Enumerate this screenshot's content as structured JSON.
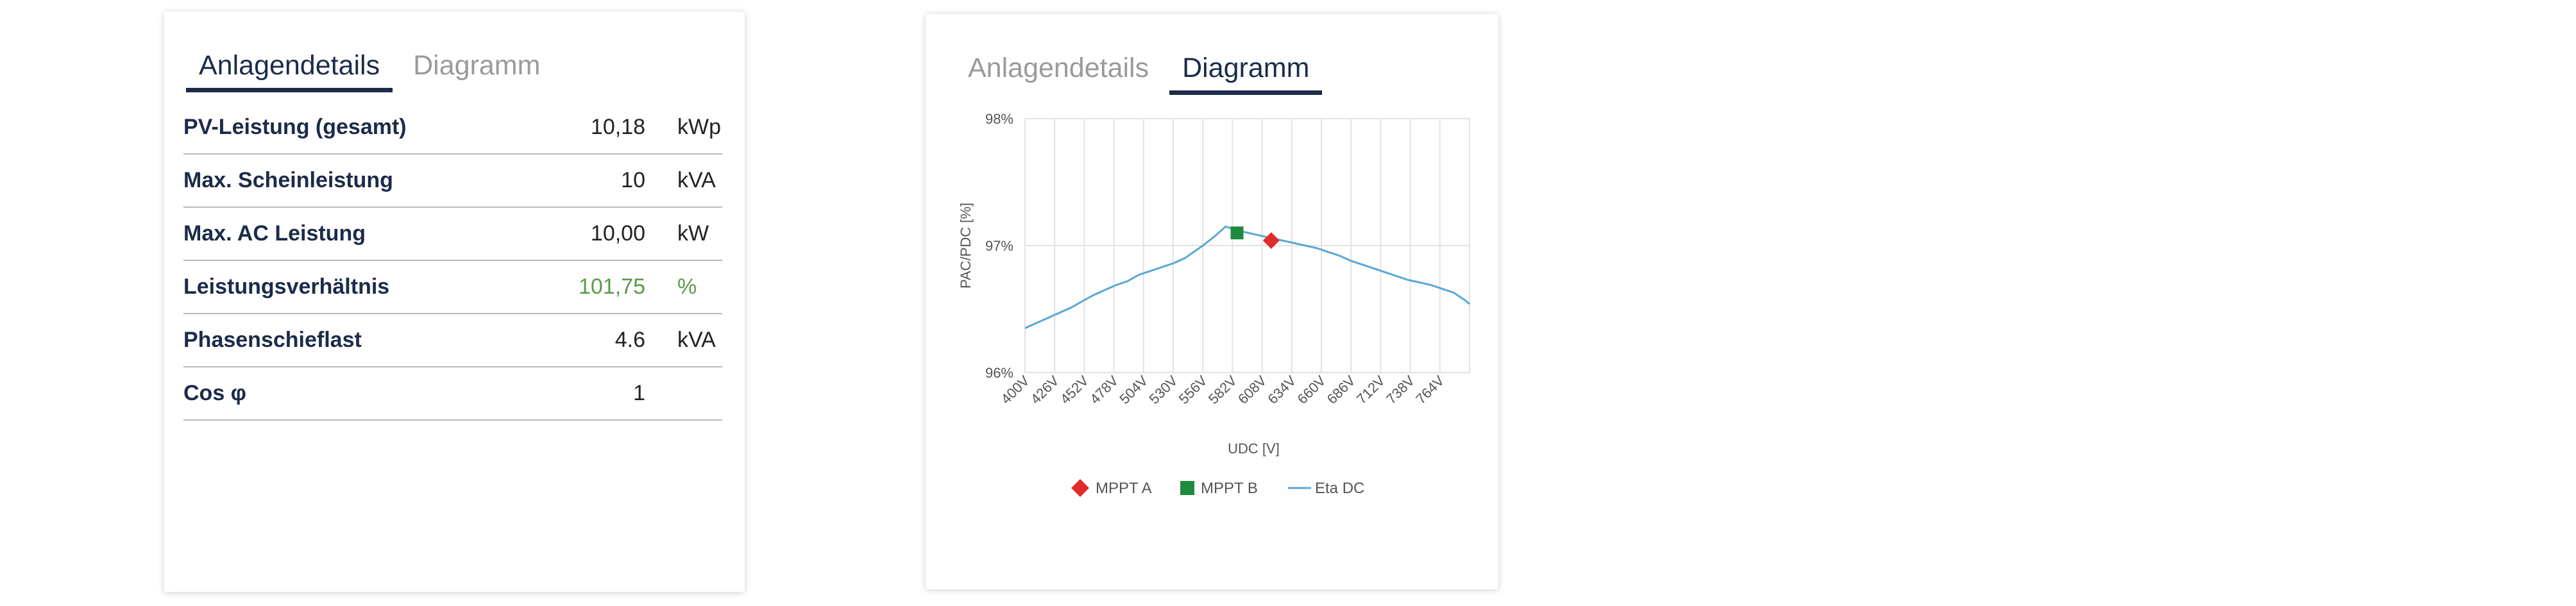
{
  "details_card": {
    "tabs": [
      {
        "label": "Anlagendetails",
        "active": true
      },
      {
        "label": "Diagramm",
        "active": false
      }
    ],
    "rows": [
      {
        "label": "PV-Leistung (gesamt)",
        "value": "10,18",
        "unit": "kWp"
      },
      {
        "label": "Max. Scheinleistung",
        "value": "10",
        "unit": "kVA"
      },
      {
        "label": "Max. AC Leistung",
        "value": "10,00",
        "unit": "kW"
      },
      {
        "label": "Leistungsverhältnis",
        "value": "101,75",
        "unit": "%",
        "highlight_color": "#5a9a4a"
      },
      {
        "label": "Phasenschieflast",
        "value": "4.6",
        "unit": "kVA"
      },
      {
        "label": "Cos φ",
        "value": "1",
        "unit": ""
      }
    ]
  },
  "chart_card": {
    "tabs": [
      {
        "label": "Anlagendetails",
        "active": false
      },
      {
        "label": "Diagramm",
        "active": true
      }
    ]
  },
  "chart_data": {
    "type": "line",
    "xlabel": "UDC [V]",
    "ylabel": "PAC/PDC [%]",
    "x_tick_labels": [
      "400V",
      "426V",
      "452V",
      "478V",
      "504V",
      "530V",
      "556V",
      "582V",
      "608V",
      "634V",
      "660V",
      "686V",
      "712V",
      "738V",
      "764V"
    ],
    "y_tick_labels": [
      "96%",
      "97%",
      "98%"
    ],
    "xlim": [
      400,
      790
    ],
    "ylim": [
      96,
      98
    ],
    "grid": true,
    "legend_position": "bottom",
    "series": [
      {
        "name": "Eta DC",
        "color": "#5aa7d8",
        "x": [
          400,
          410,
          420,
          430,
          440,
          450,
          460,
          470,
          480,
          490,
          500,
          510,
          520,
          530,
          540,
          548,
          556,
          566,
          576,
          586,
          596,
          606,
          616,
          626,
          636,
          646,
          656,
          666,
          676,
          686,
          696,
          706,
          716,
          726,
          736,
          746,
          756,
          766,
          776,
          786,
          790
        ],
        "y": [
          96.35,
          96.39,
          96.43,
          96.47,
          96.51,
          96.56,
          96.61,
          96.65,
          96.69,
          96.72,
          96.77,
          96.8,
          96.83,
          96.86,
          96.9,
          96.95,
          97.0,
          97.07,
          97.15,
          97.12,
          97.1,
          97.08,
          97.06,
          97.04,
          97.02,
          97.0,
          96.98,
          96.95,
          96.92,
          96.88,
          96.85,
          96.82,
          96.79,
          96.76,
          96.73,
          96.71,
          96.69,
          96.66,
          96.63,
          96.57,
          96.54
        ]
      },
      {
        "name": "MPPT A",
        "color": "#e32b2b",
        "marker": "diamond",
        "x": [
          616
        ],
        "y": [
          97.04
        ]
      },
      {
        "name": "MPPT B",
        "color": "#1e8a3c",
        "marker": "square",
        "x": [
          586
        ],
        "y": [
          97.1
        ]
      }
    ]
  }
}
